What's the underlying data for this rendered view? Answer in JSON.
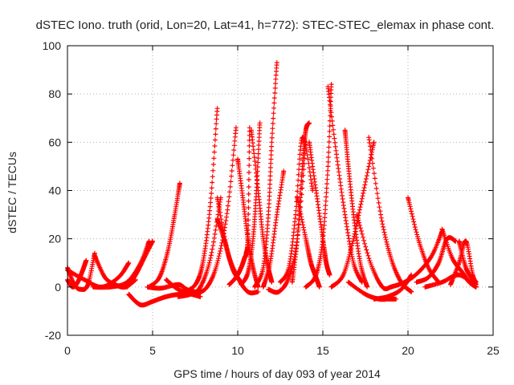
{
  "chart_data": {
    "type": "scatter",
    "title": "dSTEC Iono. truth (orid, Lon=20, Lat=41, h=772): STEC-STEC_elemax in phase cont.",
    "xlabel": "GPS time / hours of day 093 of year 2014",
    "ylabel": "dSTEC  / TECUs",
    "xlim": [
      0,
      25
    ],
    "ylim": [
      -20,
      100
    ],
    "xticks": [
      "0",
      "5",
      "10",
      "15",
      "20",
      "25"
    ],
    "yticks": [
      "-20",
      "0",
      "20",
      "40",
      "60",
      "80",
      "100"
    ],
    "grid": true,
    "marker": "+",
    "color": "#ff0000",
    "series": [
      {
        "x": [
          0.0,
          0.4,
          0.8,
          1.2,
          1.6
        ],
        "y": [
          8,
          1,
          -1,
          1,
          14
        ]
      },
      {
        "x": [
          0.0,
          0.3,
          0.6,
          0.9,
          1.1
        ],
        "y": [
          3,
          0,
          2,
          7,
          11
        ]
      },
      {
        "x": [
          0.0,
          1.0,
          2.0,
          3.0,
          3.6
        ],
        "y": [
          7,
          3,
          0,
          4,
          10
        ]
      },
      {
        "x": [
          1.6,
          2.2,
          2.8,
          3.4,
          4.0
        ],
        "y": [
          13,
          4,
          1,
          0,
          3
        ]
      },
      {
        "x": [
          1.5,
          2.5,
          3.5,
          4.3,
          4.8
        ],
        "y": [
          0,
          0,
          2,
          10,
          19
        ]
      },
      {
        "x": [
          3.6,
          4.0,
          4.4,
          5.0,
          5.8,
          6.6,
          7.5
        ],
        "y": [
          -3,
          -6,
          -7.5,
          -6,
          -4,
          -3,
          -3
        ]
      },
      {
        "x": [
          3.5,
          4.0,
          4.5,
          5.0
        ],
        "y": [
          0,
          5,
          12,
          19
        ]
      },
      {
        "x": [
          4.7,
          5.5,
          6.5,
          7.0,
          7.5
        ],
        "y": [
          0,
          -0.5,
          1,
          -1,
          -2
        ]
      },
      {
        "x": [
          4.8,
          5.4,
          5.9,
          6.3,
          6.6
        ],
        "y": [
          0,
          4,
          15,
          30,
          43
        ]
      },
      {
        "x": [
          5.8,
          6.3,
          6.8,
          7.3,
          7.8
        ],
        "y": [
          3,
          0,
          -2,
          -3,
          -4
        ]
      },
      {
        "x": [
          6.5,
          7.2,
          7.8,
          8.4,
          9.0
        ],
        "y": [
          -4,
          -3,
          0,
          12,
          37
        ]
      },
      {
        "x": [
          7.0,
          7.6,
          8.0,
          8.4,
          8.8
        ],
        "y": [
          -2,
          2,
          12,
          35,
          74
        ]
      },
      {
        "x": [
          7.5,
          8.2,
          8.8,
          9.4,
          9.9
        ],
        "y": [
          -3,
          0,
          10,
          32,
          66
        ]
      },
      {
        "x": [
          8.8,
          9.4,
          10.0,
          10.6,
          11.2
        ],
        "y": [
          37,
          15,
          4,
          -2,
          -2
        ]
      },
      {
        "x": [
          8.8,
          9.2,
          9.5,
          9.8,
          10.1
        ],
        "y": [
          28,
          20,
          12,
          6,
          3
        ]
      },
      {
        "x": [
          9.5,
          9.9,
          10.2,
          10.4,
          10.5,
          10.6,
          10.7
        ],
        "y": [
          1,
          4,
          8,
          12,
          14,
          22,
          66
        ]
      },
      {
        "x": [
          10.0,
          10.3,
          10.6,
          10.9,
          11.2
        ],
        "y": [
          53,
          37,
          20,
          8,
          0
        ]
      },
      {
        "x": [
          10.2,
          10.6,
          10.9,
          11.1,
          11.3
        ],
        "y": [
          1,
          6,
          20,
          40,
          68
        ]
      },
      {
        "x": [
          10.8,
          11.2,
          11.5,
          11.8,
          12.0
        ],
        "y": [
          65,
          40,
          20,
          8,
          2
        ]
      },
      {
        "x": [
          11.0,
          11.5,
          11.8,
          12.0,
          12.3
        ],
        "y": [
          0,
          8,
          30,
          60,
          93
        ]
      },
      {
        "x": [
          11.5,
          11.9,
          12.3,
          12.7
        ],
        "y": [
          0,
          10,
          30,
          48
        ]
      },
      {
        "x": [
          11.8,
          12.4,
          13.0,
          13.5,
          14.0
        ],
        "y": [
          -1,
          -2,
          4,
          20,
          60
        ]
      },
      {
        "x": [
          12.5,
          13.0,
          13.4,
          13.8,
          14.4
        ],
        "y": [
          2,
          8,
          30,
          62,
          40
        ]
      },
      {
        "x": [
          13.2,
          13.5,
          13.8,
          14.0,
          14.2
        ],
        "y": [
          2,
          20,
          50,
          65,
          68
        ]
      },
      {
        "x": [
          13.5,
          14.0,
          14.3,
          14.6,
          14.8
        ],
        "y": [
          37,
          20,
          10,
          4,
          0
        ]
      },
      {
        "x": [
          14.2,
          14.6,
          15.0,
          15.2,
          15.4
        ],
        "y": [
          60,
          40,
          20,
          10,
          5
        ]
      },
      {
        "x": [
          14.0,
          14.6,
          15.0,
          15.3,
          15.5
        ],
        "y": [
          0,
          5,
          20,
          50,
          84
        ]
      },
      {
        "x": [
          15.3,
          15.8,
          16.3,
          16.8,
          17.3
        ],
        "y": [
          83,
          55,
          30,
          10,
          2
        ]
      },
      {
        "x": [
          16.3,
          16.5,
          16.8,
          17.2,
          17.6
        ],
        "y": [
          65,
          50,
          30,
          10,
          0
        ]
      },
      {
        "x": [
          15.5,
          16.2,
          16.8,
          17.4,
          18.0
        ],
        "y": [
          0,
          5,
          20,
          40,
          60
        ]
      },
      {
        "x": [
          17.7,
          18.4,
          19.0,
          19.6,
          20.2
        ],
        "y": [
          62,
          30,
          12,
          2,
          -2
        ]
      },
      {
        "x": [
          17.0,
          17.8,
          18.5,
          19.0
        ],
        "y": [
          30,
          10,
          0,
          0
        ]
      },
      {
        "x": [
          16.5,
          17.5,
          18.3,
          18.8,
          19.3
        ],
        "y": [
          2,
          -3,
          -5,
          -5,
          -5
        ]
      },
      {
        "x": [
          18.0,
          18.8,
          19.6,
          20.2
        ],
        "y": [
          -5,
          -4,
          -1,
          5
        ]
      },
      {
        "x": [
          20.0,
          20.6,
          21.2,
          21.8
        ],
        "y": [
          37,
          20,
          8,
          2
        ]
      },
      {
        "x": [
          19.0,
          19.8,
          20.6,
          21.4,
          22.0
        ],
        "y": [
          0,
          2,
          6,
          13,
          23
        ]
      },
      {
        "x": [
          20.5,
          21.2,
          21.8,
          22.3,
          22.8
        ],
        "y": [
          2,
          4,
          10,
          20,
          19
        ]
      },
      {
        "x": [
          22.0,
          22.6,
          23.2,
          23.6,
          24.0
        ],
        "y": [
          24,
          12,
          6,
          2,
          0
        ]
      },
      {
        "x": [
          22.5,
          23.0,
          23.4,
          23.8,
          24.0
        ],
        "y": [
          1,
          10,
          19,
          5,
          2
        ]
      },
      {
        "x": [
          23.0,
          23.4,
          23.8,
          24.0
        ],
        "y": [
          19,
          8,
          3,
          1
        ]
      },
      {
        "x": [
          21.0,
          22.0,
          23.0,
          24.0
        ],
        "y": [
          0,
          2,
          5,
          0
        ]
      }
    ]
  }
}
